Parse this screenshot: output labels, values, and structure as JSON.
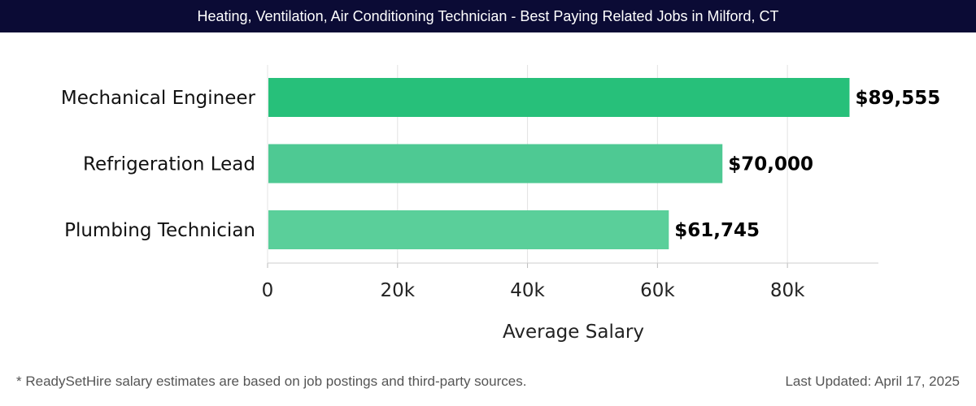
{
  "header": {
    "title": "Heating, Ventilation, Air Conditioning Technician - Best Paying Related Jobs in Milford, CT"
  },
  "chart_data": {
    "type": "bar",
    "orientation": "horizontal",
    "title": "Heating, Ventilation, Air Conditioning Technician - Best Paying Related Jobs in Milford, CT",
    "categories": [
      "Mechanical Engineer",
      "Refrigeration Lead",
      "Plumbing Technician"
    ],
    "values": [
      89555,
      70000,
      61745
    ],
    "value_labels": [
      "$89,555",
      "$70,000",
      "$61,745"
    ],
    "bar_colors": [
      "#27c07a",
      "#4ec993",
      "#5acf9a"
    ],
    "xlabel": "Average Salary",
    "ylabel": "",
    "xlim": [
      0,
      94000
    ],
    "xticks": [
      0,
      20000,
      40000,
      60000,
      80000
    ],
    "xtick_labels": [
      "0",
      "20k",
      "40k",
      "60k",
      "80k"
    ],
    "grid": true
  },
  "footer": {
    "note": "* ReadySetHire salary estimates are based on job postings and third-party sources.",
    "updated": "Last Updated: April 17, 2025"
  }
}
